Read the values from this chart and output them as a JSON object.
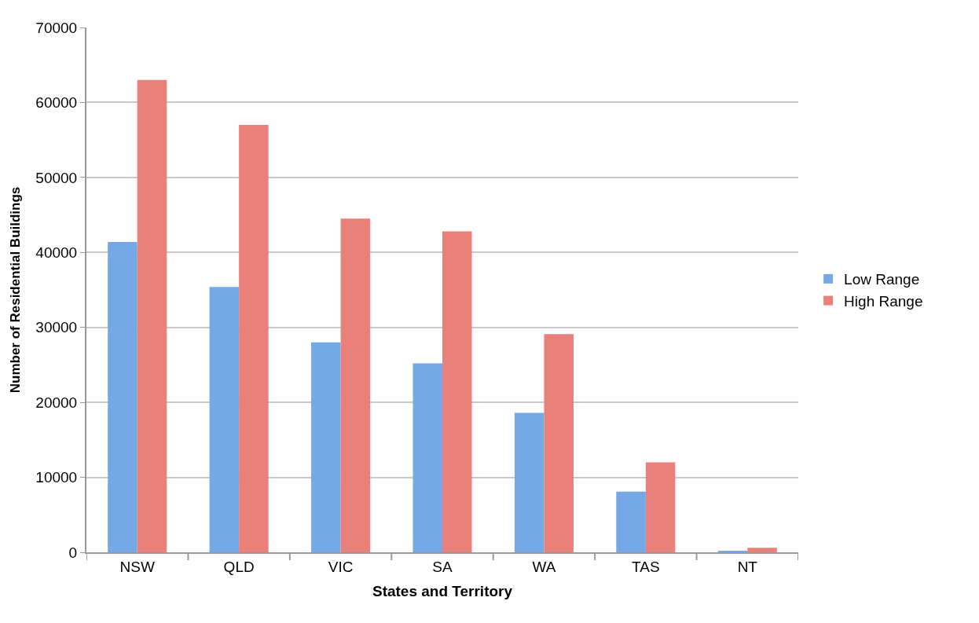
{
  "chart_data": {
    "type": "bar",
    "xlabel": "States and Territory",
    "ylabel": "Number of Residential Buildings",
    "categories": [
      "NSW",
      "QLD",
      "VIC",
      "SA",
      "WA",
      "TAS",
      "NT"
    ],
    "series": [
      {
        "name": "Low Range",
        "color": "#74a8e6",
        "values": [
          41400,
          35400,
          28000,
          25200,
          18600,
          8100,
          200
        ]
      },
      {
        "name": "High Range",
        "color": "#e9807a",
        "values": [
          63000,
          57000,
          44500,
          42800,
          29100,
          12000,
          600
        ]
      }
    ],
    "ylim": [
      0,
      70000
    ],
    "yticks": [
      0,
      10000,
      20000,
      30000,
      40000,
      50000,
      60000,
      70000
    ],
    "grid": "y",
    "legend": "right"
  }
}
